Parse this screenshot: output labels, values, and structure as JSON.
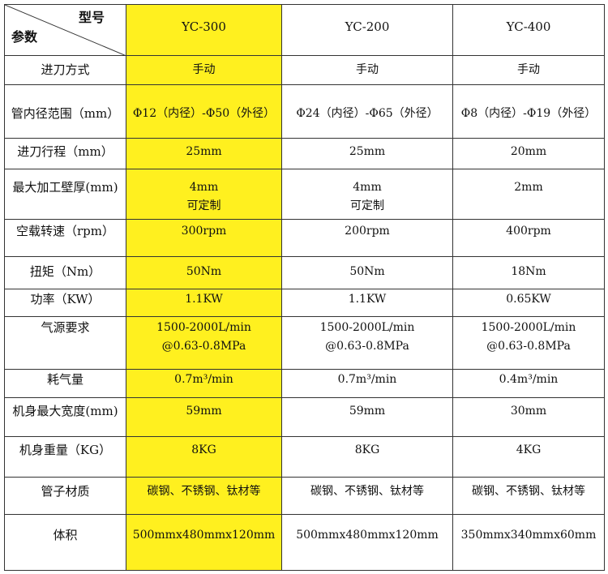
{
  "header": {
    "corner_top": "型号",
    "corner_bottom": "参数",
    "models": [
      "YC-300",
      "YC-200",
      "YC-400"
    ]
  },
  "highlight_color": "#fff01f",
  "rows": [
    {
      "label": "进刀方式",
      "values": [
        [
          "手动"
        ],
        [
          "手动"
        ],
        [
          "手动"
        ]
      ]
    },
    {
      "label": "管内径范围（mm）",
      "values": [
        [
          "Φ12（内径）-Φ50（外径）"
        ],
        [
          "Φ24（内径）-Φ65（外径）"
        ],
        [
          "Φ8（内径）-Φ19（外径）"
        ]
      ]
    },
    {
      "label": "进刀行程（mm）",
      "values": [
        [
          "25mm"
        ],
        [
          "25mm"
        ],
        [
          "20mm"
        ]
      ]
    },
    {
      "label": "最大加工壁厚(mm)",
      "values": [
        [
          "4mm",
          "可定制"
        ],
        [
          "4mm",
          "可定制"
        ],
        [
          "2mm"
        ]
      ]
    },
    {
      "label": "空载转速（rpm）",
      "values": [
        [
          "300rpm"
        ],
        [
          "200rpm"
        ],
        [
          "400rpm"
        ]
      ]
    },
    {
      "label": "扭矩（Nm）",
      "values": [
        [
          "50Nm"
        ],
        [
          "50Nm"
        ],
        [
          "18Nm"
        ]
      ]
    },
    {
      "label": "功率（KW）",
      "values": [
        [
          "1.1KW"
        ],
        [
          "1.1KW"
        ],
        [
          "0.65KW"
        ]
      ]
    },
    {
      "label": "气源要求",
      "values": [
        [
          "1500-2000L/min",
          "@0.63-0.8MPa"
        ],
        [
          "1500-2000L/min",
          "@0.63-0.8MPa"
        ],
        [
          "1500-2000L/min",
          "@0.63-0.8MPa"
        ]
      ]
    },
    {
      "label": "耗气量",
      "values": [
        [
          "0.7m³/min"
        ],
        [
          "0.7m³/min"
        ],
        [
          "0.4m³/min"
        ]
      ]
    },
    {
      "label": "机身最大宽度(mm)",
      "values": [
        [
          "59mm"
        ],
        [
          "59mm"
        ],
        [
          "30mm"
        ]
      ]
    },
    {
      "label": "机身重量（KG）",
      "values": [
        [
          "8KG"
        ],
        [
          "8KG"
        ],
        [
          "4KG"
        ]
      ]
    },
    {
      "label": "管子材质",
      "values": [
        [
          "碳钢、不锈钢、钛材等"
        ],
        [
          "碳钢、不锈钢、钛材等"
        ],
        [
          "碳钢、不锈钢、钛材等"
        ]
      ]
    },
    {
      "label": "体积",
      "values": [
        [
          "500mmx480mmx120mm"
        ],
        [
          "500mmx480mmx120mm"
        ],
        [
          "350mmx340mmx60mm"
        ]
      ]
    }
  ]
}
